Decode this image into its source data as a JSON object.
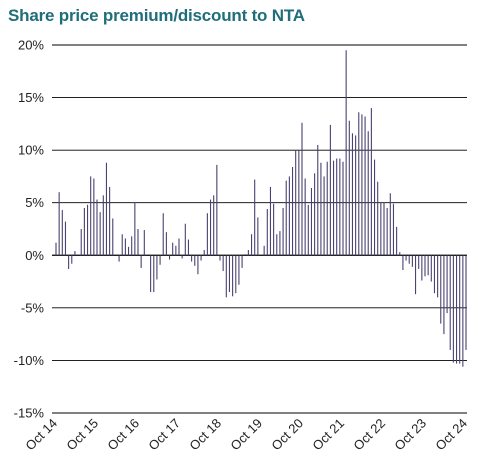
{
  "chart_data": {
    "type": "bar",
    "title": "Share price premium/discount to NTA",
    "xlabel": "",
    "ylabel": "",
    "ylim": [
      -15,
      20
    ],
    "y_tick_step": 5,
    "y_tick_suffix": "%",
    "grid": true,
    "legend": "none",
    "x_tick_labels": [
      "Oct 14",
      "Oct 15",
      "Oct 16",
      "Oct 17",
      "Oct 18",
      "Oct 19",
      "Oct 20",
      "Oct 21",
      "Oct 22",
      "Oct 23",
      "Oct 24"
    ],
    "values": [
      1.2,
      6.0,
      4.3,
      3.2,
      -1.3,
      -0.8,
      0.4,
      0.0,
      2.5,
      4.5,
      4.8,
      7.5,
      7.3,
      5.3,
      4.1,
      5.7,
      8.8,
      6.5,
      3.5,
      0.0,
      -0.6,
      2.0,
      1.6,
      0.8,
      1.8,
      5.0,
      2.5,
      -1.2,
      2.4,
      0.0,
      -3.5,
      -3.5,
      -2.3,
      -0.9,
      4.0,
      2.2,
      -0.4,
      1.2,
      0.9,
      1.6,
      -0.3,
      3.0,
      1.5,
      -0.6,
      -1.0,
      -1.8,
      -0.5,
      0.5,
      4.0,
      5.3,
      5.7,
      8.6,
      -0.5,
      -1.5,
      -4.0,
      -3.5,
      -3.9,
      -3.6,
      -2.8,
      -1.2,
      0.1,
      0.5,
      2.0,
      7.2,
      3.6,
      0.0,
      0.9,
      4.4,
      6.5,
      4.9,
      2.0,
      2.3,
      4.5,
      7.1,
      7.5,
      8.4,
      10.0,
      10.0,
      12.6,
      7.3,
      4.8,
      6.4,
      7.8,
      10.5,
      8.8,
      7.5,
      8.9,
      12.4,
      9.0,
      9.2,
      9.2,
      8.9,
      19.5,
      12.8,
      11.6,
      11.4,
      13.6,
      13.4,
      13.2,
      11.8,
      14.0,
      9.1,
      7.0,
      5.0,
      5.0,
      4.5,
      5.9,
      4.9,
      2.7,
      0.3,
      -1.4,
      -0.5,
      -0.8,
      -1.1,
      -3.7,
      -1.3,
      -2.4,
      -2.0,
      -1.9,
      -2.5,
      -3.6,
      -4.0,
      -6.5,
      -7.5,
      -5.5,
      -9.0,
      -10.2,
      -10.3,
      -10.3,
      -10.6,
      -9.0
    ],
    "colors": {
      "title": "#1f6e7a",
      "bar": "#4a4270",
      "grid": "#000000",
      "axis_text": "#222222"
    }
  }
}
